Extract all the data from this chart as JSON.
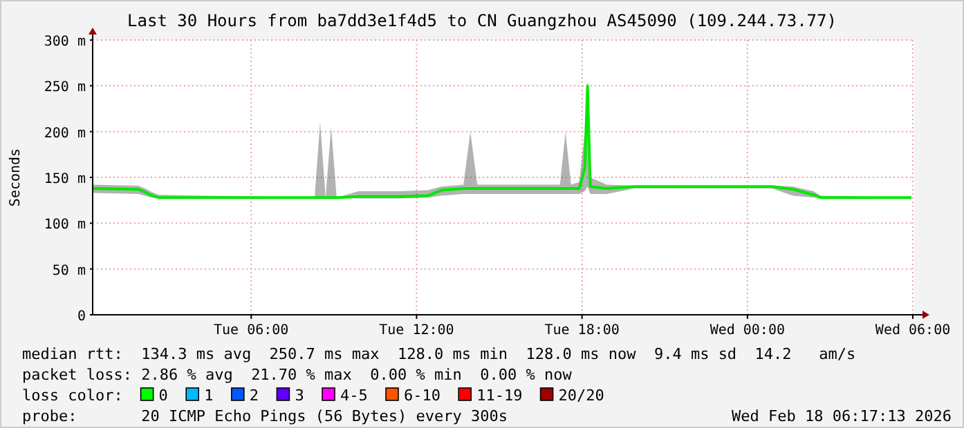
{
  "chart_data": {
    "type": "line",
    "title": "Last 30 Hours from ba7dd3e1f4d5 to CN Guangzhou AS45090 (109.244.73.77)",
    "ylabel": "Seconds",
    "x": [
      "2026-02-17T00:15",
      "2026-02-17T01:54",
      "2026-02-17T02:09",
      "2026-02-17T02:24",
      "2026-02-17T02:39",
      "2026-02-17T08:18",
      "2026-02-17T08:30",
      "2026-02-17T08:42",
      "2026-02-17T08:54",
      "2026-02-17T09:06",
      "2026-02-17T09:54",
      "2026-02-17T11:24",
      "2026-02-17T12:24",
      "2026-02-17T12:54",
      "2026-02-17T13:42",
      "2026-02-17T13:57",
      "2026-02-17T14:12",
      "2026-02-17T17:12",
      "2026-02-17T17:24",
      "2026-02-17T17:36",
      "2026-02-17T17:54",
      "2026-02-17T18:06",
      "2026-02-17T18:12",
      "2026-02-17T18:18",
      "2026-02-17T18:54",
      "2026-02-17T19:54",
      "2026-02-18T00:54",
      "2026-02-18T01:39",
      "2026-02-18T02:24",
      "2026-02-18T02:39",
      "2026-02-18T05:57"
    ],
    "series": [
      {
        "color": "#00e800",
        "values": [
          138,
          137,
          134,
          130,
          128,
          128,
          128,
          128,
          128,
          128,
          129,
          129,
          130,
          136,
          138,
          138,
          138,
          138,
          138,
          138,
          138,
          160,
          250,
          140,
          138,
          140,
          140,
          137,
          131,
          128,
          128
        ],
        "lower": [
          133,
          132,
          130,
          128,
          128,
          128,
          128,
          128,
          128,
          128,
          127,
          127,
          128,
          130,
          132,
          132,
          132,
          132,
          132,
          132,
          132,
          135,
          140,
          132,
          132,
          138,
          138,
          130,
          128,
          128,
          128
        ],
        "upper": [
          142,
          141,
          138,
          134,
          131,
          128,
          210,
          128,
          205,
          128,
          135,
          135,
          136,
          140,
          142,
          200,
          142,
          142,
          200,
          142,
          145,
          200,
          255,
          150,
          142,
          141,
          141,
          140,
          135,
          130,
          128
        ]
      }
    ],
    "xlim": [
      "2026-02-17T00:15",
      "2026-02-18T06:15"
    ],
    "xticks": [
      {
        "value": "2026-02-17T06:00",
        "label": "Tue 06:00"
      },
      {
        "value": "2026-02-17T12:00",
        "label": "Tue 12:00"
      },
      {
        "value": "2026-02-17T18:00",
        "label": "Tue 18:00"
      },
      {
        "value": "2026-02-18T00:00",
        "label": "Wed 00:00"
      },
      {
        "value": "2026-02-18T06:00",
        "label": "Wed 06:00"
      }
    ],
    "ylim": [
      0,
      300
    ],
    "yticks": [
      0,
      {
        "value": 50,
        "label": "50 m"
      },
      {
        "value": 100,
        "label": "100 m"
      },
      {
        "value": 150,
        "label": "150 m"
      },
      {
        "value": 200,
        "label": "200 m"
      },
      {
        "value": 250,
        "label": "250 m"
      },
      {
        "value": 300,
        "label": "300 m"
      }
    ],
    "grid": true,
    "line_style": "solid",
    "marker": "none",
    "annotations": [
      "median rtt:  134.3 ms avg  250.7 ms max  128.0 ms min  128.0 ms now  9.4 ms sd  14.2   am/s",
      "packet loss: 2.86 % avg  21.70 % max  0.00 % min  0.00 % now",
      "loss color:  0  1  2  3  4-5  6-10  11-19  20/20",
      "probe:       20 ICMP Echo Pings (56 Bytes) every 300s",
      "Wed Feb 18 06:17:13 2026"
    ]
  }
}
